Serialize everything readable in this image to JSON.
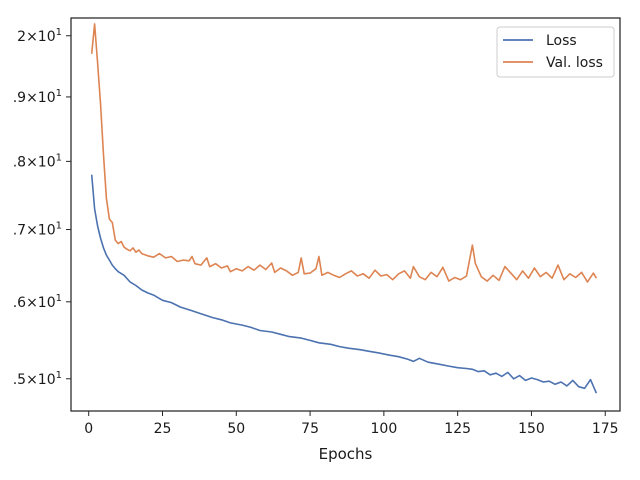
{
  "chart_data": {
    "type": "line",
    "title": "",
    "xlabel": "Epochs",
    "ylabel": "",
    "yscale": "log",
    "xlim": [
      -6,
      180
    ],
    "ylim": [
      14.6,
      20.3
    ],
    "grid": false,
    "legend_position": "top-right",
    "xticks": [
      0,
      25,
      50,
      75,
      100,
      125,
      150,
      175
    ],
    "xtick_labels": [
      "0",
      "25",
      "50",
      "75",
      "100",
      "125",
      "150",
      "175"
    ],
    "yticks": [
      {
        "value": 15,
        "mantissa": "1.5",
        "visible": ".5",
        "exp": "1"
      },
      {
        "value": 16,
        "mantissa": "1.6",
        "visible": ".6",
        "exp": "1"
      },
      {
        "value": 17,
        "mantissa": "1.7",
        "visible": ".7",
        "exp": "1"
      },
      {
        "value": 18,
        "mantissa": "1.8",
        "visible": ".8",
        "exp": "1"
      },
      {
        "value": 19,
        "mantissa": "1.9",
        "visible": ".9",
        "exp": "1"
      },
      {
        "value": 20,
        "mantissa": "2",
        "visible": "2",
        "exp": "1"
      }
    ],
    "series": [
      {
        "name": "Loss",
        "color": "#4c72b0",
        "points": [
          [
            1,
            17.8
          ],
          [
            2,
            17.3
          ],
          [
            3,
            17.05
          ],
          [
            4,
            16.88
          ],
          [
            5,
            16.74
          ],
          [
            6,
            16.64
          ],
          [
            7,
            16.57
          ],
          [
            8,
            16.5
          ],
          [
            9,
            16.45
          ],
          [
            10,
            16.41
          ],
          [
            12,
            16.36
          ],
          [
            14,
            16.27
          ],
          [
            16,
            16.22
          ],
          [
            18,
            16.16
          ],
          [
            20,
            16.12
          ],
          [
            22,
            16.09
          ],
          [
            25,
            16.02
          ],
          [
            28,
            15.99
          ],
          [
            31,
            15.93
          ],
          [
            35,
            15.88
          ],
          [
            38,
            15.84
          ],
          [
            42,
            15.79
          ],
          [
            45,
            15.76
          ],
          [
            48,
            15.72
          ],
          [
            52,
            15.69
          ],
          [
            55,
            15.66
          ],
          [
            58,
            15.62
          ],
          [
            62,
            15.6
          ],
          [
            65,
            15.57
          ],
          [
            68,
            15.54
          ],
          [
            72,
            15.52
          ],
          [
            75,
            15.49
          ],
          [
            78,
            15.46
          ],
          [
            82,
            15.44
          ],
          [
            85,
            15.41
          ],
          [
            88,
            15.39
          ],
          [
            92,
            15.37
          ],
          [
            95,
            15.35
          ],
          [
            98,
            15.33
          ],
          [
            102,
            15.3
          ],
          [
            105,
            15.28
          ],
          [
            108,
            15.25
          ],
          [
            110,
            15.22
          ],
          [
            112,
            15.26
          ],
          [
            115,
            15.21
          ],
          [
            118,
            15.19
          ],
          [
            122,
            15.16
          ],
          [
            125,
            15.14
          ],
          [
            128,
            15.13
          ],
          [
            130,
            15.12
          ],
          [
            132,
            15.09
          ],
          [
            134,
            15.1
          ],
          [
            136,
            15.05
          ],
          [
            138,
            15.07
          ],
          [
            140,
            15.03
          ],
          [
            142,
            15.08
          ],
          [
            144,
            15.0
          ],
          [
            146,
            15.04
          ],
          [
            148,
            14.98
          ],
          [
            150,
            15.01
          ],
          [
            152,
            14.99
          ],
          [
            154,
            14.96
          ],
          [
            156,
            14.97
          ],
          [
            158,
            14.93
          ],
          [
            160,
            14.96
          ],
          [
            162,
            14.91
          ],
          [
            164,
            14.98
          ],
          [
            166,
            14.9
          ],
          [
            168,
            14.88
          ],
          [
            170,
            14.99
          ],
          [
            172,
            14.82
          ]
        ]
      },
      {
        "name": "Val. loss",
        "color": "#dd8452",
        "points": [
          [
            1,
            19.7
          ],
          [
            2,
            20.2
          ],
          [
            3,
            19.55
          ],
          [
            4,
            18.9
          ],
          [
            5,
            18.1
          ],
          [
            6,
            17.45
          ],
          [
            7,
            17.15
          ],
          [
            8,
            17.1
          ],
          [
            9,
            16.85
          ],
          [
            10,
            16.8
          ],
          [
            11,
            16.83
          ],
          [
            12,
            16.75
          ],
          [
            13,
            16.72
          ],
          [
            14,
            16.7
          ],
          [
            15,
            16.74
          ],
          [
            16,
            16.68
          ],
          [
            17,
            16.71
          ],
          [
            18,
            16.66
          ],
          [
            20,
            16.63
          ],
          [
            22,
            16.61
          ],
          [
            24,
            16.66
          ],
          [
            26,
            16.6
          ],
          [
            28,
            16.62
          ],
          [
            30,
            16.55
          ],
          [
            32,
            16.57
          ],
          [
            34,
            16.56
          ],
          [
            35,
            16.62
          ],
          [
            36,
            16.52
          ],
          [
            38,
            16.5
          ],
          [
            40,
            16.6
          ],
          [
            41,
            16.48
          ],
          [
            43,
            16.52
          ],
          [
            45,
            16.46
          ],
          [
            47,
            16.49
          ],
          [
            48,
            16.41
          ],
          [
            50,
            16.45
          ],
          [
            52,
            16.42
          ],
          [
            54,
            16.48
          ],
          [
            56,
            16.43
          ],
          [
            58,
            16.5
          ],
          [
            60,
            16.44
          ],
          [
            62,
            16.53
          ],
          [
            63,
            16.4
          ],
          [
            65,
            16.46
          ],
          [
            67,
            16.42
          ],
          [
            69,
            16.36
          ],
          [
            71,
            16.4
          ],
          [
            72,
            16.6
          ],
          [
            73,
            16.38
          ],
          [
            75,
            16.39
          ],
          [
            77,
            16.45
          ],
          [
            78,
            16.62
          ],
          [
            79,
            16.36
          ],
          [
            81,
            16.4
          ],
          [
            83,
            16.36
          ],
          [
            85,
            16.33
          ],
          [
            87,
            16.38
          ],
          [
            89,
            16.42
          ],
          [
            91,
            16.35
          ],
          [
            93,
            16.38
          ],
          [
            95,
            16.32
          ],
          [
            97,
            16.43
          ],
          [
            99,
            16.35
          ],
          [
            101,
            16.37
          ],
          [
            103,
            16.3
          ],
          [
            105,
            16.38
          ],
          [
            107,
            16.42
          ],
          [
            109,
            16.32
          ],
          [
            110,
            16.48
          ],
          [
            112,
            16.34
          ],
          [
            114,
            16.3
          ],
          [
            116,
            16.4
          ],
          [
            118,
            16.34
          ],
          [
            120,
            16.47
          ],
          [
            122,
            16.28
          ],
          [
            124,
            16.33
          ],
          [
            126,
            16.3
          ],
          [
            128,
            16.35
          ],
          [
            130,
            16.78
          ],
          [
            131,
            16.52
          ],
          [
            133,
            16.34
          ],
          [
            135,
            16.28
          ],
          [
            137,
            16.36
          ],
          [
            139,
            16.29
          ],
          [
            141,
            16.48
          ],
          [
            143,
            16.39
          ],
          [
            145,
            16.3
          ],
          [
            147,
            16.42
          ],
          [
            149,
            16.32
          ],
          [
            151,
            16.46
          ],
          [
            153,
            16.34
          ],
          [
            155,
            16.4
          ],
          [
            157,
            16.32
          ],
          [
            159,
            16.5
          ],
          [
            161,
            16.3
          ],
          [
            163,
            16.38
          ],
          [
            165,
            16.33
          ],
          [
            167,
            16.4
          ],
          [
            169,
            16.27
          ],
          [
            171,
            16.39
          ],
          [
            172,
            16.32
          ]
        ]
      }
    ]
  }
}
